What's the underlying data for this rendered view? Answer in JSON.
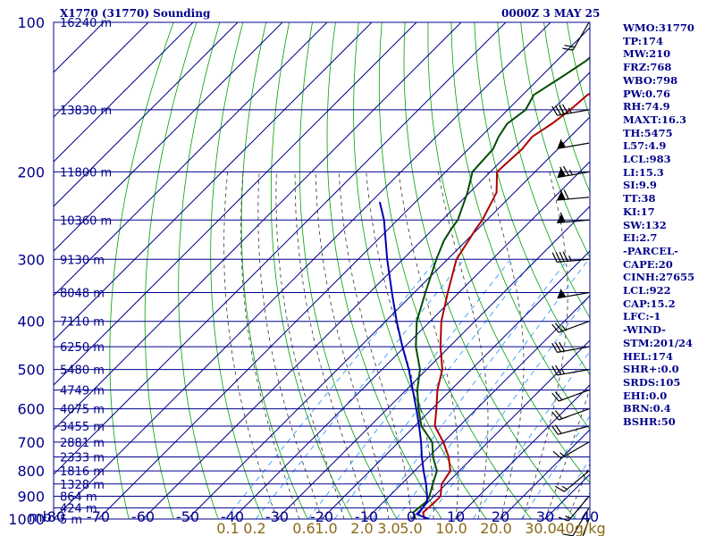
{
  "header": {
    "station": "X1770 (31770) Sounding",
    "time": "0000Z  3 MAY 25"
  },
  "stats": [
    "WMO:31770",
    "TP:174",
    "MW:210",
    "FRZ:768",
    "WBO:798",
    "PW:0.76",
    "RH:74.9",
    "MAXT:16.3",
    "TH:5475",
    "L57:4.9",
    "LCL:983",
    "LI:15.3",
    "SI:9.9",
    "TT:38",
    "KI:17",
    "SW:132",
    "EI:2.7",
    "-PARCEL-",
    "CAPE:20",
    "CINH:27655",
    "LCL:922",
    "CAP:15.2",
    "LFC:-1",
    "-WIND-",
    "STM:201/24",
    "HEL:174",
    "SHR+:0.0",
    "SRDS:105",
    "EHI:0.0",
    "BRN:0.4",
    "BSHR:50"
  ],
  "colors": {
    "frame": "#00008b",
    "dry_adiabat": "#00a000",
    "moist_adiabat": "#333333",
    "mixing_ratio": "#1e90ff",
    "temperature": "#b00000",
    "dewpoint": "#004d00",
    "parcel": "#0000b0",
    "wind": "#000000",
    "mixing_ratio_label": "#8b6914"
  },
  "chart_data": {
    "type": "line",
    "xlabel": "mb",
    "ylabel": "",
    "xlim": [
      -80,
      40
    ],
    "pressure_levels": [
      100,
      200,
      300,
      400,
      500,
      600,
      700,
      800,
      900,
      1000
    ],
    "pressure_tick_labels": [
      "100",
      "200",
      "300",
      "400",
      "500",
      "600",
      "700",
      "800",
      "900",
      "1000"
    ],
    "temp_tick_labels": [
      "-80",
      "-70",
      "-60",
      "-50",
      "-40",
      "-30",
      "-20",
      "-10",
      "0",
      "10",
      "20",
      "30",
      "40"
    ],
    "height_labels": [
      {
        "p": 100,
        "text": "16240 m"
      },
      {
        "p": 150,
        "text": "13830 m"
      },
      {
        "p": 200,
        "text": "11800 m"
      },
      {
        "p": 250,
        "text": "10360 m"
      },
      {
        "p": 300,
        "text": "9130 m"
      },
      {
        "p": 350,
        "text": "8048 m"
      },
      {
        "p": 400,
        "text": "7110 m"
      },
      {
        "p": 450,
        "text": "6250 m"
      },
      {
        "p": 500,
        "text": "5480 m"
      },
      {
        "p": 550,
        "text": "4749 m"
      },
      {
        "p": 600,
        "text": "4075 m"
      },
      {
        "p": 650,
        "text": "3455 m"
      },
      {
        "p": 700,
        "text": "2881 m"
      },
      {
        "p": 750,
        "text": "2333 m"
      },
      {
        "p": 800,
        "text": "1816 m"
      },
      {
        "p": 850,
        "text": "1328 m"
      },
      {
        "p": 900,
        "text": "864 m"
      },
      {
        "p": 950,
        "text": "424 m"
      },
      {
        "p": 1000,
        "text": "5 m"
      }
    ],
    "mixing_ratio_labels": [
      {
        "t": -41,
        "text": "0.1"
      },
      {
        "t": -35,
        "text": "0.2"
      },
      {
        "t": -24,
        "text": "0.6"
      },
      {
        "t": -19,
        "text": "1.0"
      },
      {
        "t": -11,
        "text": "2.0"
      },
      {
        "t": -5,
        "text": "3.0"
      },
      {
        "t": 0,
        "text": "5.0"
      },
      {
        "t": 9,
        "text": "10.0"
      },
      {
        "t": 19,
        "text": "20.0"
      },
      {
        "t": 29,
        "text": "30.0"
      },
      {
        "t": 38,
        "text": "40g/kg"
      }
    ],
    "series": [
      {
        "key": "temperature",
        "points": [
          {
            "p": 1000,
            "t": 3.0
          },
          {
            "p": 970,
            "t": 1.2
          },
          {
            "p": 925,
            "t": 1.5
          },
          {
            "p": 900,
            "t": 1.5
          },
          {
            "p": 850,
            "t": -1.0
          },
          {
            "p": 800,
            "t": -2.0
          },
          {
            "p": 750,
            "t": -5.5
          },
          {
            "p": 700,
            "t": -10.0
          },
          {
            "p": 650,
            "t": -15.5
          },
          {
            "p": 600,
            "t": -19.0
          },
          {
            "p": 550,
            "t": -23.0
          },
          {
            "p": 500,
            "t": -26.5
          },
          {
            "p": 450,
            "t": -32.0
          },
          {
            "p": 400,
            "t": -37.5
          },
          {
            "p": 350,
            "t": -42.5
          },
          {
            "p": 300,
            "t": -48.0
          },
          {
            "p": 275,
            "t": -49.5
          },
          {
            "p": 260,
            "t": -50.5
          },
          {
            "p": 250,
            "t": -51.0
          },
          {
            "p": 220,
            "t": -54.0
          },
          {
            "p": 200,
            "t": -58.5
          },
          {
            "p": 180,
            "t": -58.0
          },
          {
            "p": 170,
            "t": -58.5
          },
          {
            "p": 160,
            "t": -57.0
          },
          {
            "p": 150,
            "t": -56.0
          },
          {
            "p": 140,
            "t": -55.5
          },
          {
            "p": 130,
            "t": -52.0
          },
          {
            "p": 120,
            "t": -51.5
          },
          {
            "p": 110,
            "t": -49.5
          },
          {
            "p": 100,
            "t": -50.5
          }
        ]
      },
      {
        "key": "dewpoint",
        "points": [
          {
            "p": 1000,
            "t": 1.0
          },
          {
            "p": 970,
            "t": -1.0
          },
          {
            "p": 925,
            "t": -0.5
          },
          {
            "p": 900,
            "t": -1.0
          },
          {
            "p": 850,
            "t": -3.0
          },
          {
            "p": 800,
            "t": -5.0
          },
          {
            "p": 750,
            "t": -9.0
          },
          {
            "p": 700,
            "t": -12.5
          },
          {
            "p": 650,
            "t": -18.5
          },
          {
            "p": 600,
            "t": -23.0
          },
          {
            "p": 550,
            "t": -27.5
          },
          {
            "p": 500,
            "t": -31.5
          },
          {
            "p": 450,
            "t": -37.5
          },
          {
            "p": 400,
            "t": -43.0
          },
          {
            "p": 350,
            "t": -47.5
          },
          {
            "p": 300,
            "t": -52.5
          },
          {
            "p": 275,
            "t": -55.0
          },
          {
            "p": 260,
            "t": -56.0
          },
          {
            "p": 250,
            "t": -56.5
          },
          {
            "p": 220,
            "t": -60.5
          },
          {
            "p": 200,
            "t": -64.0
          },
          {
            "p": 180,
            "t": -64.5
          },
          {
            "p": 170,
            "t": -66.0
          },
          {
            "p": 160,
            "t": -67.0
          },
          {
            "p": 150,
            "t": -66.0
          },
          {
            "p": 140,
            "t": -67.5
          },
          {
            "p": 130,
            "t": -65.5
          },
          {
            "p": 120,
            "t": -63.5
          },
          {
            "p": 110,
            "t": -62.5
          },
          {
            "p": 100,
            "t": -62.0
          }
        ]
      },
      {
        "key": "parcel",
        "points": [
          {
            "p": 1000,
            "t": 4.0
          },
          {
            "p": 980,
            "t": 0.5
          },
          {
            "p": 922,
            "t": -0.3
          },
          {
            "p": 900,
            "t": -1.5
          },
          {
            "p": 850,
            "t": -4.5
          },
          {
            "p": 800,
            "t": -8.0
          },
          {
            "p": 750,
            "t": -11.5
          },
          {
            "p": 700,
            "t": -15.0
          },
          {
            "p": 650,
            "t": -19.0
          },
          {
            "p": 600,
            "t": -23.5
          },
          {
            "p": 550,
            "t": -28.5
          },
          {
            "p": 500,
            "t": -34.0
          },
          {
            "p": 450,
            "t": -40.5
          },
          {
            "p": 400,
            "t": -47.5
          },
          {
            "p": 350,
            "t": -55.0
          },
          {
            "p": 300,
            "t": -63.5
          },
          {
            "p": 250,
            "t": -73.0
          },
          {
            "p": 230,
            "t": -78.0
          }
        ]
      }
    ],
    "wind_barbs": [
      {
        "p": 100,
        "dir": 210,
        "kt": 20
      },
      {
        "p": 150,
        "dir": 260,
        "kt": 45
      },
      {
        "p": 175,
        "dir": 260,
        "kt": 55
      },
      {
        "p": 200,
        "dir": 260,
        "kt": 75
      },
      {
        "p": 225,
        "dir": 265,
        "kt": 70
      },
      {
        "p": 250,
        "dir": 265,
        "kt": 60
      },
      {
        "p": 300,
        "dir": 265,
        "kt": 45
      },
      {
        "p": 350,
        "dir": 260,
        "kt": 55
      },
      {
        "p": 400,
        "dir": 250,
        "kt": 25
      },
      {
        "p": 450,
        "dir": 260,
        "kt": 30
      },
      {
        "p": 500,
        "dir": 260,
        "kt": 25
      },
      {
        "p": 550,
        "dir": 250,
        "kt": 20
      },
      {
        "p": 600,
        "dir": 250,
        "kt": 20
      },
      {
        "p": 650,
        "dir": 255,
        "kt": 20
      },
      {
        "p": 700,
        "dir": 240,
        "kt": 15
      },
      {
        "p": 800,
        "dir": 230,
        "kt": 15
      },
      {
        "p": 900,
        "dir": 220,
        "kt": 15
      },
      {
        "p": 950,
        "dir": 210,
        "kt": 10
      },
      {
        "p": 1000,
        "dir": 200,
        "kt": 10
      }
    ]
  }
}
